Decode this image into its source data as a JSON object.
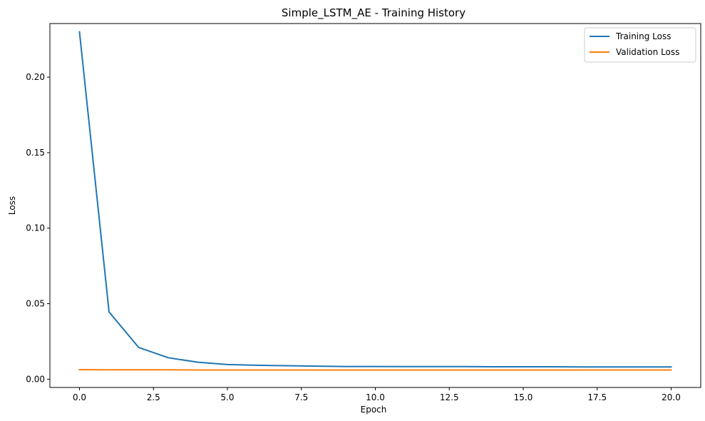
{
  "chart_data": {
    "type": "line",
    "title": "Simple_LSTM_AE - Training History",
    "xlabel": "Epoch",
    "ylabel": "Loss",
    "xlim": [
      -1.0,
      21.0
    ],
    "ylim": [
      -0.0055,
      0.2355
    ],
    "xticks": [
      0.0,
      2.5,
      5.0,
      7.5,
      10.0,
      12.5,
      15.0,
      17.5,
      20.0
    ],
    "xtick_labels": [
      "0.0",
      "2.5",
      "5.0",
      "7.5",
      "10.0",
      "12.5",
      "15.0",
      "17.5",
      "20.0"
    ],
    "yticks": [
      0.0,
      0.05,
      0.1,
      0.15,
      0.2
    ],
    "ytick_labels": [
      "0.00",
      "0.05",
      "0.10",
      "0.15",
      "0.20"
    ],
    "grid": false,
    "legend_position": "top-right",
    "x": [
      0,
      1,
      2,
      3,
      4,
      5,
      6,
      7,
      8,
      9,
      10,
      11,
      12,
      13,
      14,
      15,
      16,
      17,
      18,
      19,
      20
    ],
    "series": [
      {
        "name": "Training Loss",
        "color": "#1f77b4",
        "values": [
          0.23,
          0.0445,
          0.021,
          0.0142,
          0.0112,
          0.0097,
          0.0092,
          0.0089,
          0.0086,
          0.0084,
          0.0084,
          0.0083,
          0.0083,
          0.0083,
          0.0082,
          0.0082,
          0.0082,
          0.0081,
          0.0081,
          0.0081,
          0.0081
        ]
      },
      {
        "name": "Validation Loss",
        "color": "#ff7f0e",
        "values": [
          0.0063,
          0.0062,
          0.0062,
          0.0062,
          0.0061,
          0.0061,
          0.0061,
          0.0061,
          0.0061,
          0.0061,
          0.0061,
          0.0061,
          0.0061,
          0.0061,
          0.0061,
          0.0061,
          0.0061,
          0.0061,
          0.0061,
          0.0061,
          0.0061
        ]
      }
    ]
  }
}
